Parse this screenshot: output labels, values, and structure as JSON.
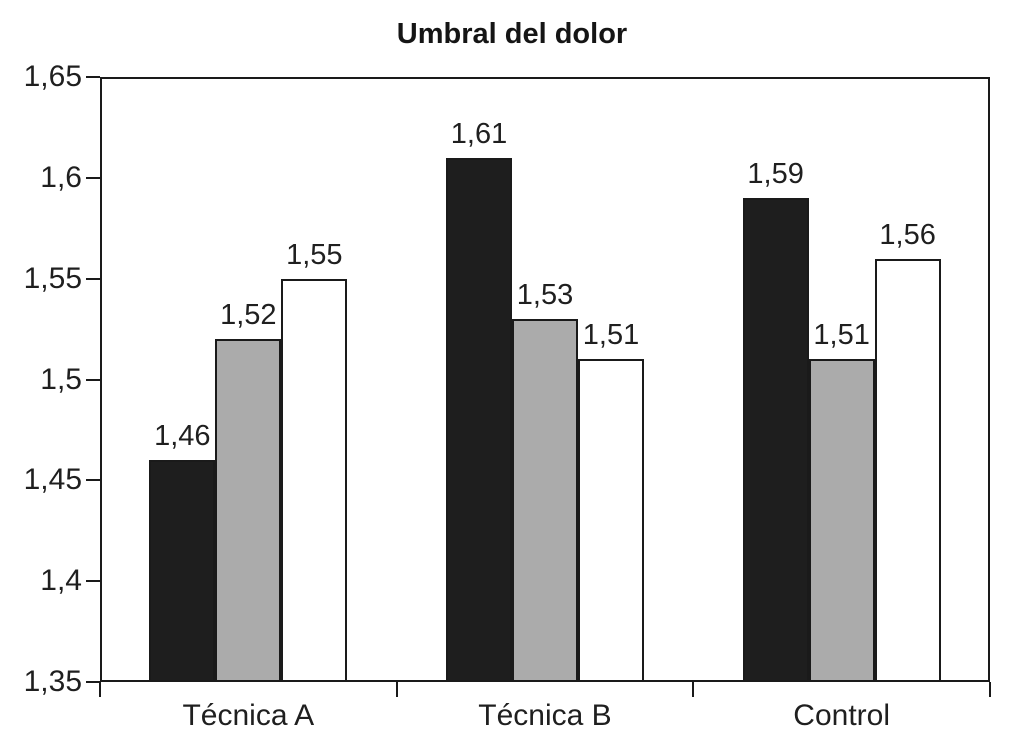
{
  "chart_data": {
    "type": "bar",
    "title": "Umbral del dolor",
    "categories": [
      "Técnica A",
      "Técnica B",
      "Control"
    ],
    "series": [
      {
        "name": "black-series",
        "color": "#1e1e1e",
        "border_color": "#1a1a1a",
        "values": [
          1.46,
          1.61,
          1.59
        ],
        "labels": [
          "1,46",
          "1,61",
          "1,59"
        ]
      },
      {
        "name": "gray-series",
        "color": "#ababab",
        "border_color": "#1a1a1a",
        "values": [
          1.52,
          1.53,
          1.51
        ],
        "labels": [
          "1,52",
          "1,53",
          "1,51"
        ]
      },
      {
        "name": "white-series",
        "color": "#ffffff",
        "border_color": "#1a1a1a",
        "values": [
          1.55,
          1.51,
          1.56
        ],
        "labels": [
          "1,55",
          "1,51",
          "1,56"
        ]
      }
    ],
    "xlabel": "",
    "ylabel": "",
    "ylim": [
      1.35,
      1.65
    ],
    "ytick_values": [
      1.65,
      1.6,
      1.55,
      1.5,
      1.45,
      1.4,
      1.35
    ],
    "ytick_labels": [
      "1,65",
      "1,6",
      "1,55",
      "1,5",
      "1,45",
      "1,4",
      "1,35"
    ],
    "decimal_separator": ",",
    "grid": false,
    "legend_position": "none",
    "value_labels_shown": true,
    "axis_color": "#1a1a1a",
    "background_color": "#ffffff"
  }
}
